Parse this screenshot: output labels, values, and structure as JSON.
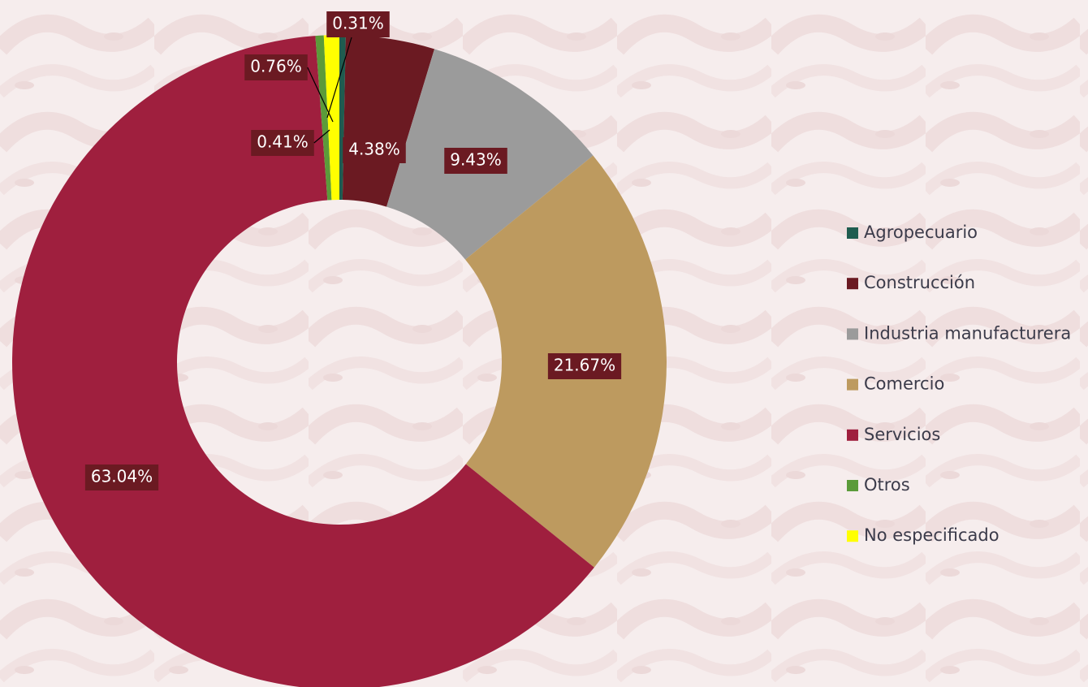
{
  "chart_data": {
    "type": "donut",
    "categories": [
      "Agropecuario",
      "Construcción",
      "Industria manufacturera",
      "Comercio",
      "Servicios",
      "Otros",
      "No especificado"
    ],
    "values": [
      0.31,
      4.38,
      9.43,
      21.67,
      63.04,
      0.41,
      0.76
    ],
    "value_labels": [
      "0.31%",
      "4.38%",
      "9.43%",
      "21.67%",
      "63.04%",
      "0.41%",
      "0.76%"
    ],
    "colors": [
      "#1f5c4f",
      "#6b1a22",
      "#9b9b9b",
      "#bd9a5f",
      "#9f1f3e",
      "#5b9b3a",
      "#ffff00"
    ],
    "legend": "right"
  }
}
